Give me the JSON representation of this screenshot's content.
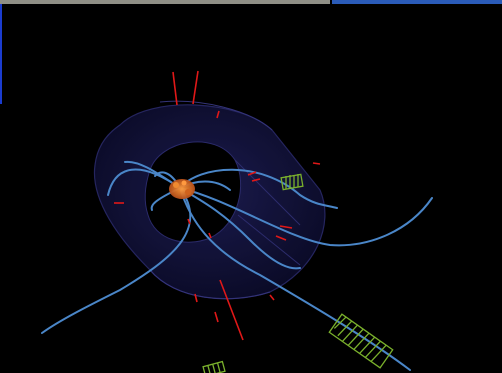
{
  "viewer": {
    "background": "#000000",
    "progress": {
      "fraction": 0.657,
      "done_color": "#8f8f86",
      "rest_color": "#2a5bb8"
    },
    "edge_color": "#1b3ccf"
  },
  "scene": {
    "icon": "event-display-icon",
    "detector_color": "#161640",
    "detector_rim_color": "#2a2a6a",
    "track_color": "#4a86c8",
    "vertex_color": "#e0701e",
    "hit_color": "#e01818",
    "cluster_color": "#7ab02c"
  }
}
